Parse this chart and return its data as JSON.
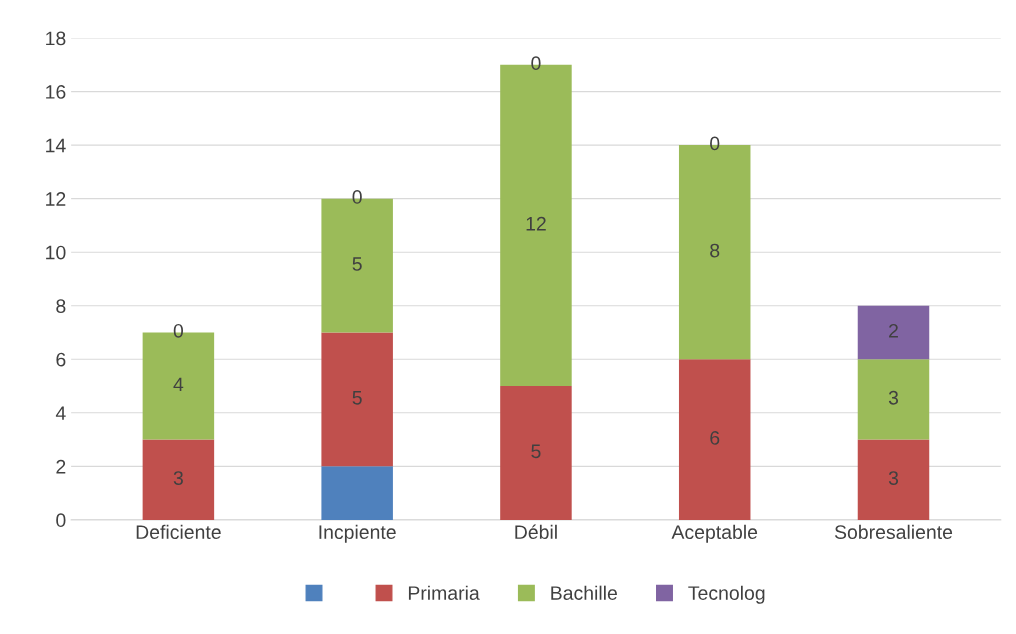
{
  "chart_data": {
    "type": "bar",
    "stacked": true,
    "categories": [
      "Deficiente",
      "Incpiente",
      "Débil",
      "Aceptable",
      "Sobresaliente"
    ],
    "series": [
      {
        "color": "#4f81bd",
        "values": [
          0,
          2,
          0,
          0,
          0
        ],
        "value_labels": [
          null,
          null,
          null,
          null,
          null
        ]
      },
      {
        "name": "Primaria",
        "color": "#c0504d",
        "values": [
          3,
          5,
          5,
          6,
          3
        ],
        "value_labels": [
          "3",
          "5",
          "5",
          "6",
          "3"
        ]
      },
      {
        "name": "Bachille",
        "color": "#9bbb59",
        "values": [
          4,
          5,
          12,
          8,
          3
        ],
        "value_labels": [
          "4",
          "5",
          "12",
          "8",
          "3"
        ]
      },
      {
        "name": "Tecnolog",
        "color": "#8064a2",
        "values": [
          0,
          0,
          0,
          0,
          2
        ],
        "value_labels": [
          "0",
          "0",
          "0",
          "0",
          "2"
        ]
      }
    ],
    "ylim": [
      0,
      18
    ],
    "yticks": [
      0,
      2,
      4,
      6,
      8,
      10,
      12,
      14,
      16,
      18
    ],
    "grid": "y",
    "legend": "bottom"
  }
}
